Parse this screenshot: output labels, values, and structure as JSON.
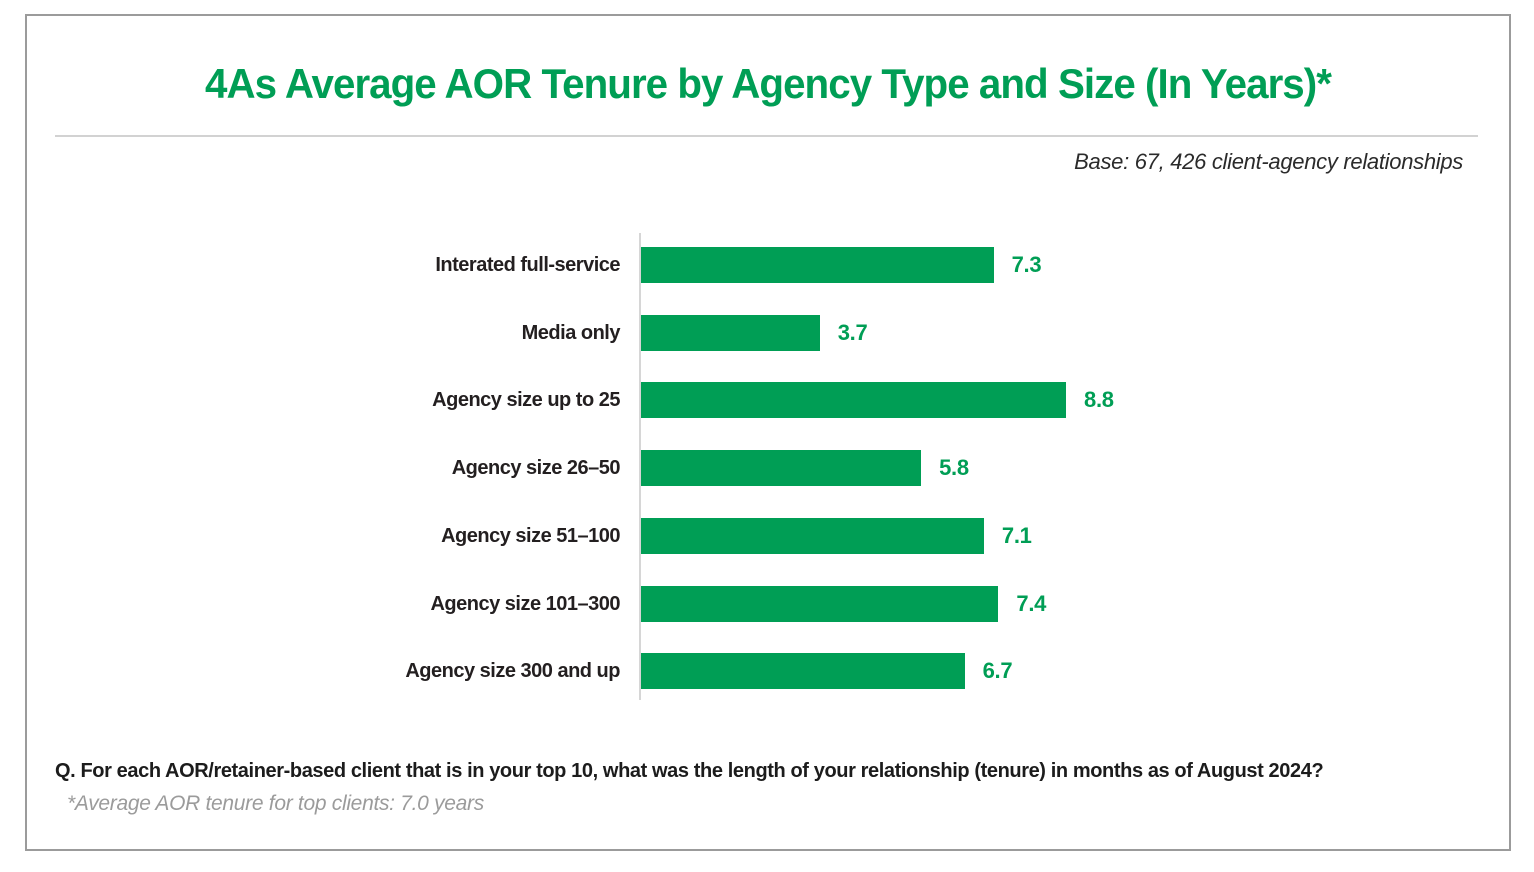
{
  "header": {
    "title": "4As Average AOR Tenure by Agency Type and Size (In Years)*",
    "base_note": "Base: 67, 426 client-agency relationships"
  },
  "chart_data": {
    "type": "bar",
    "orientation": "horizontal",
    "title": "4As Average AOR Tenure by Agency Type and Size (In Years)*",
    "categories": [
      "Interated full-service",
      "Media only",
      "Agency size up to 25",
      "Agency size 26–50",
      "Agency size 51–100",
      "Agency size 101–300",
      "Agency size 300 and up"
    ],
    "values": [
      7.3,
      3.7,
      8.8,
      5.8,
      7.1,
      7.4,
      6.7
    ],
    "xlabel": "",
    "ylabel": "",
    "xlim": [
      0,
      9.2
    ],
    "grid": false,
    "legend": false,
    "bar_color": "#009e55",
    "value_label_color": "#009e55"
  },
  "footer": {
    "question": "Q. For each AOR/retainer-based client that is in your top 10, what was the length of your relationship (tenure) in months as of August 2024?",
    "footnote": "*Average AOR tenure for top clients: 7.0 years"
  },
  "colors": {
    "accent_green": "#009e55",
    "axis_gray": "#d6d6d6",
    "border_gray": "#9b9b9b",
    "divider_gray": "#d2d2d2",
    "footnote_gray": "#9b9b9b"
  }
}
